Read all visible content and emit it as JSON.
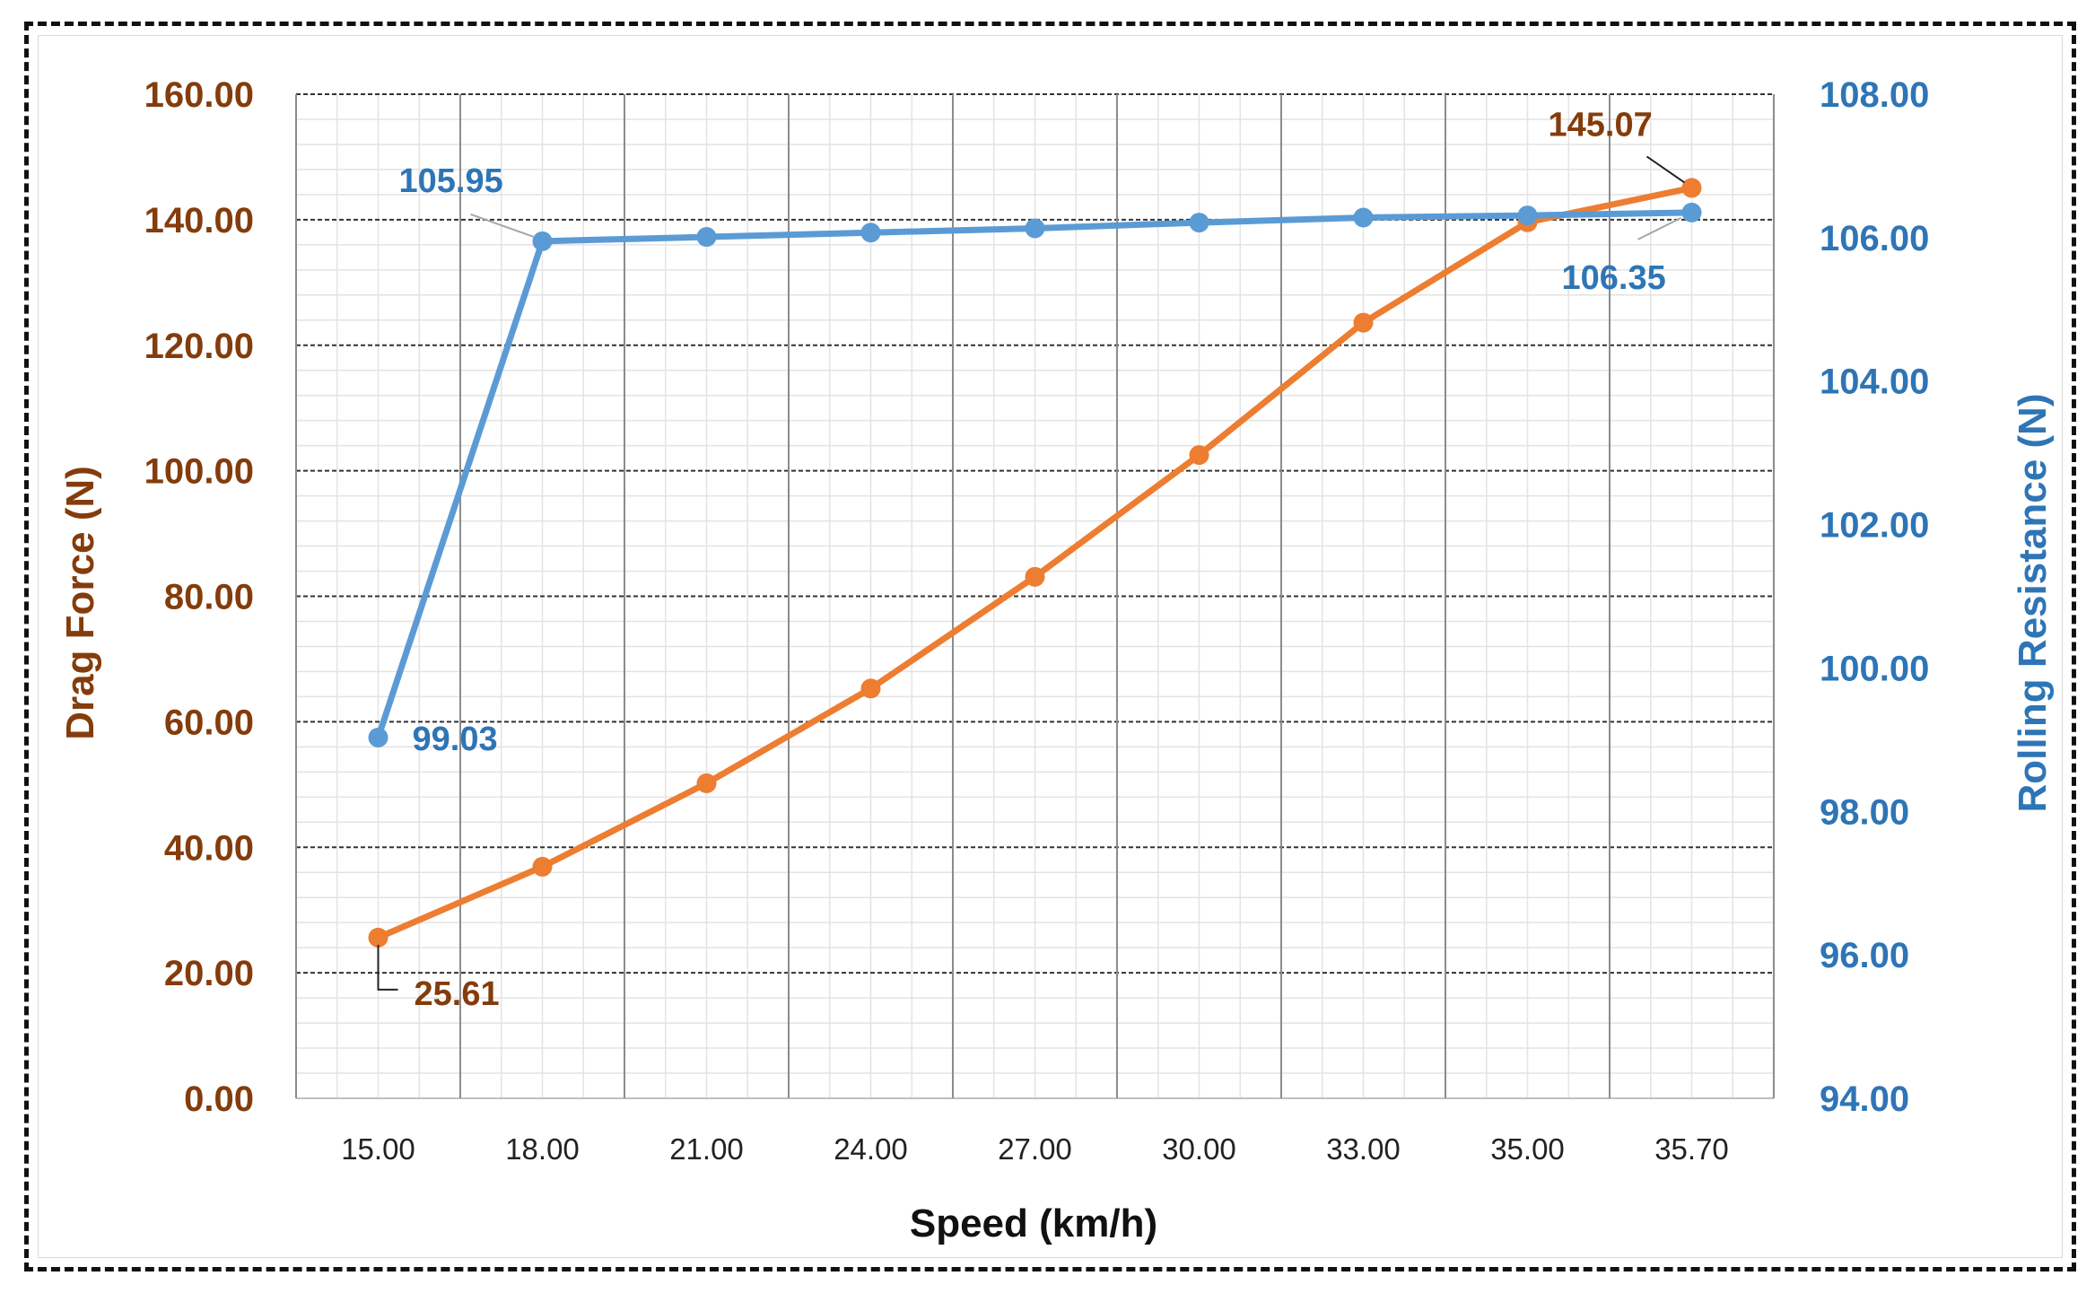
{
  "chart_data": {
    "type": "line",
    "title": "",
    "xlabel": "Speed (km/h)",
    "ylabel_left": "Drag Force (N)",
    "ylabel_right": "Rolling Resistance (N)",
    "categories": [
      "15.00",
      "18.00",
      "21.00",
      "24.00",
      "27.00",
      "30.00",
      "33.00",
      "35.00",
      "35.70"
    ],
    "y_left_range": [
      0,
      160
    ],
    "y_left_ticks": [
      "0.00",
      "20.00",
      "40.00",
      "60.00",
      "80.00",
      "100.00",
      "120.00",
      "140.00",
      "160.00"
    ],
    "y_right_range": [
      94,
      108
    ],
    "y_right_ticks": [
      "94.00",
      "96.00",
      "98.00",
      "100.00",
      "102.00",
      "104.00",
      "106.00",
      "108.00"
    ],
    "grid": true,
    "legend": "none",
    "series": [
      {
        "axis": "left",
        "color": "#ED7D31",
        "values": [
          25.61,
          36.9,
          50.2,
          65.3,
          83.1,
          102.5,
          123.6,
          139.6,
          145.07
        ],
        "labels": [
          {
            "index": 0,
            "text": "25.61"
          },
          {
            "index": 8,
            "text": "145.07"
          }
        ]
      },
      {
        "axis": "right",
        "color": "#5B9BD5",
        "values": [
          99.03,
          105.95,
          106.01,
          106.07,
          106.13,
          106.21,
          106.28,
          106.31,
          106.35
        ],
        "labels": [
          {
            "index": 0,
            "text": "99.03"
          },
          {
            "index": 1,
            "text": "105.95"
          },
          {
            "index": 8,
            "text": "106.35"
          }
        ]
      }
    ],
    "colors": {
      "left_axis_text": "#843C0C",
      "right_axis_text": "#2E75B6",
      "left_label_text": "#843C0C",
      "right_label_text": "#2E75B6"
    }
  }
}
